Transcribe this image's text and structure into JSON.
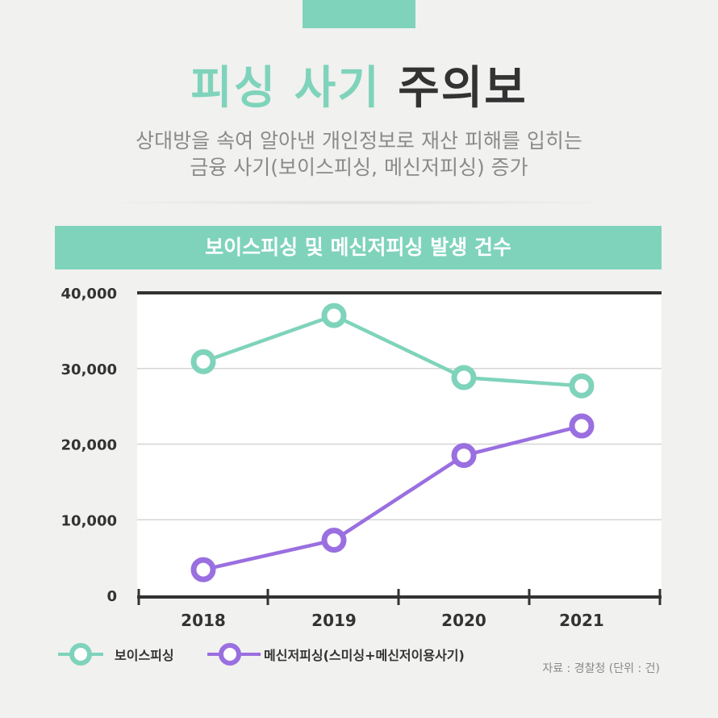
{
  "header": {
    "title_accent": "피싱 사기",
    "title_dark": "주의보",
    "subtitle_line1": "상대방을 속여 알아낸 개인정보로 재산 피해를 입히는",
    "subtitle_line2": "금융 사기(보이스피싱, 메신저피싱) 증가"
  },
  "colors": {
    "accent": "#7fd3bb",
    "purple": "#9a6fe0",
    "dark": "#333333"
  },
  "chart_data": {
    "type": "line",
    "title": "보이스피싱 및 메신저피싱 발생 건수",
    "categories": [
      "2018",
      "2019",
      "2020",
      "2021"
    ],
    "ylim": [
      0,
      40000
    ],
    "yticks": [
      0,
      10000,
      20000,
      30000,
      40000
    ],
    "ytick_labels": [
      "0",
      "10,000",
      "20,000",
      "30,000",
      "40,000"
    ],
    "series": [
      {
        "name": "보이스피싱",
        "color": "#7fd3bb",
        "values": [
          30900,
          37000,
          28800,
          27700
        ]
      },
      {
        "name": "메신저피싱(스미싱+메신저이용사기)",
        "color": "#9a6fe0",
        "values": [
          3400,
          7300,
          18500,
          22400
        ]
      }
    ],
    "grid": true
  },
  "footer": {
    "source": "자료 : 경찰청 (단위 : 건)"
  }
}
